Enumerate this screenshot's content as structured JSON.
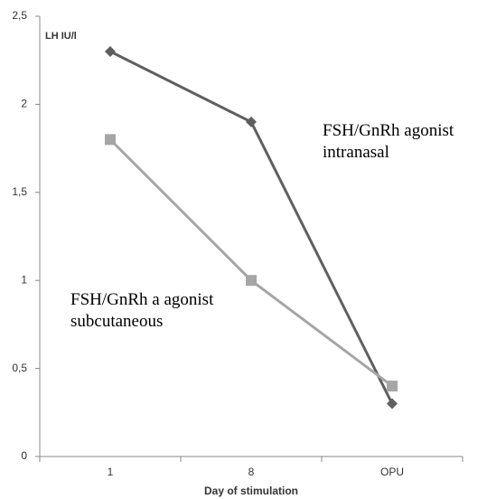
{
  "chart_data": {
    "type": "line",
    "y_label": "LH IU/l",
    "x_label": "Day of stimulation",
    "categories": [
      "1",
      "8",
      "OPU"
    ],
    "series": [
      {
        "name": "FSH/GnRh agonist intranasal",
        "color": "#5f5f5f",
        "marker": "diamond",
        "values": [
          2.3,
          1.9,
          0.3
        ]
      },
      {
        "name": "FSH/GnRh a agonist subcutaneous",
        "color": "#a6a6a6",
        "marker": "square",
        "values": [
          1.8,
          1.0,
          0.4
        ]
      }
    ],
    "ylim": [
      0,
      2.5
    ],
    "yticks": [
      0,
      {
        "value": 0.5,
        "label": "0,5"
      },
      1,
      {
        "value": 1.5,
        "label": "1,5"
      },
      2,
      {
        "value": 2.5,
        "label": "2,5"
      }
    ],
    "grid": false
  }
}
